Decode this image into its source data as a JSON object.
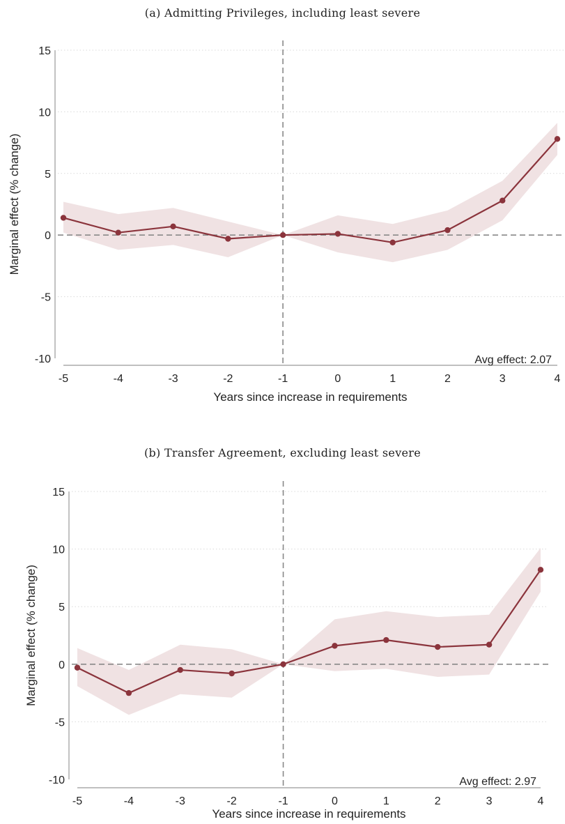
{
  "chart_data": [
    {
      "type": "line",
      "title": "(a) Admitting Privileges, including least severe",
      "xlabel": "Years since increase in requirements",
      "ylabel": "Marginal effect (% change)",
      "x": [
        -5,
        -4,
        -3,
        -2,
        -1,
        0,
        1,
        2,
        3,
        4
      ],
      "xticks": [
        "-5",
        "-4",
        "-3",
        "-2",
        "-1",
        "0",
        "1",
        "2",
        "3",
        "4"
      ],
      "yticks": [
        "-10",
        "-5",
        "0",
        "5",
        "10",
        "15"
      ],
      "ylim": [
        -10,
        15
      ],
      "xlim": [
        -5,
        4
      ],
      "grid": true,
      "series": [
        {
          "values": [
            1.4,
            0.2,
            0.7,
            -0.3,
            0.0,
            0.1,
            -0.6,
            0.4,
            2.8,
            7.8
          ],
          "ci_lower": [
            0.2,
            -1.2,
            -0.8,
            -1.8,
            0.0,
            -1.4,
            -2.2,
            -1.2,
            1.2,
            6.5
          ],
          "ci_upper": [
            2.7,
            1.7,
            2.2,
            1.1,
            0.0,
            1.6,
            0.9,
            2.0,
            4.4,
            9.1
          ]
        }
      ],
      "annotation": "Avg effect: 2.07",
      "color_line": "#8b343c",
      "color_band": "#f0e2e3"
    },
    {
      "type": "line",
      "title": "(b) Transfer Agreement, excluding least severe",
      "xlabel": "Years since increase in requirements",
      "ylabel": "Marginal effect (% change)",
      "x": [
        -5,
        -4,
        -3,
        -2,
        -1,
        0,
        1,
        2,
        3,
        4
      ],
      "xticks": [
        "-5",
        "-4",
        "-3",
        "-2",
        "-1",
        "0",
        "1",
        "2",
        "3",
        "4"
      ],
      "yticks": [
        "-10",
        "-5",
        "0",
        "5",
        "10",
        "15"
      ],
      "ylim": [
        -10,
        15
      ],
      "xlim": [
        -5,
        4
      ],
      "grid": true,
      "series": [
        {
          "values": [
            -0.3,
            -2.5,
            -0.5,
            -0.8,
            0.0,
            1.6,
            2.1,
            1.5,
            1.7,
            8.2
          ],
          "ci_lower": [
            -1.9,
            -4.4,
            -2.6,
            -2.9,
            0.0,
            -0.6,
            -0.4,
            -1.1,
            -0.9,
            6.3
          ],
          "ci_upper": [
            1.4,
            -0.5,
            1.7,
            1.3,
            0.0,
            3.9,
            4.6,
            4.1,
            4.3,
            10.1
          ]
        }
      ],
      "annotation": "Avg effect: 2.97",
      "color_line": "#8b343c",
      "color_band": "#f0e2e3"
    }
  ]
}
